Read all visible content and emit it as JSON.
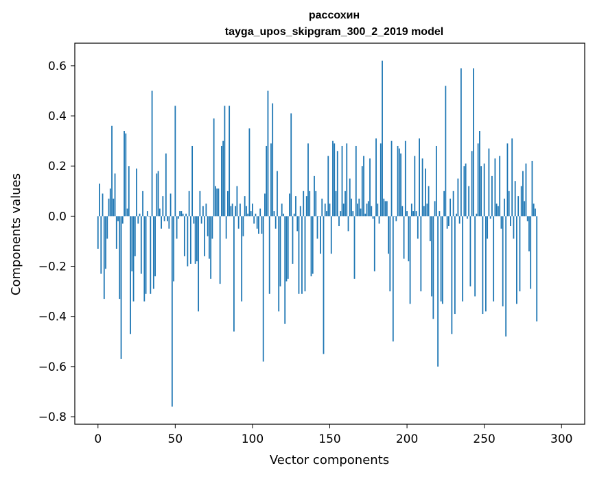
{
  "chart_data": {
    "type": "bar",
    "title": "рассохин",
    "subtitle": "tayga_upos_skipgram_300_2_2019 model",
    "xlabel": "Vector components",
    "ylabel": "Components values",
    "xlim": [
      -15,
      315
    ],
    "ylim": [
      -0.83,
      0.69
    ],
    "xticks": [
      0,
      50,
      100,
      150,
      200,
      250,
      300
    ],
    "xtick_labels": [
      "0",
      "50",
      "100",
      "150",
      "200",
      "250",
      "300"
    ],
    "yticks": [
      -0.8,
      -0.6,
      -0.4,
      -0.2,
      0.0,
      0.2,
      0.4,
      0.6
    ],
    "ytick_labels": [
      "−0.8",
      "−0.6",
      "−0.4",
      "−0.2",
      "0.0",
      "0.2",
      "0.4",
      "0.6"
    ],
    "bar_color": "#1f77b4",
    "series": [
      {
        "name": "components",
        "values": [
          -0.13,
          0.13,
          -0.23,
          0.09,
          -0.33,
          -0.21,
          -0.09,
          0.07,
          0.11,
          0.36,
          0.07,
          0.17,
          -0.13,
          -0.02,
          -0.33,
          -0.57,
          -0.03,
          0.34,
          0.33,
          0.03,
          0.2,
          -0.47,
          -0.22,
          -0.34,
          -0.16,
          0.19,
          -0.03,
          0.01,
          -0.23,
          0.1,
          -0.34,
          -0.31,
          0.02,
          0.0,
          -0.31,
          0.5,
          -0.29,
          -0.24,
          0.17,
          0.18,
          0.03,
          -0.05,
          0.08,
          -0.02,
          0.25,
          -0.02,
          -0.05,
          0.09,
          -0.76,
          -0.26,
          0.44,
          -0.09,
          -0.01,
          0.02,
          0.02,
          0.01,
          -0.16,
          0.01,
          -0.2,
          0.1,
          -0.19,
          0.28,
          -0.03,
          -0.19,
          -0.18,
          -0.38,
          0.1,
          -0.03,
          0.04,
          -0.16,
          0.05,
          -0.08,
          -0.17,
          -0.25,
          -0.09,
          0.39,
          0.12,
          0.11,
          0.11,
          -0.27,
          0.28,
          0.3,
          0.44,
          -0.09,
          0.1,
          0.44,
          0.04,
          0.05,
          -0.46,
          0.04,
          0.12,
          -0.05,
          0.05,
          -0.34,
          -0.08,
          0.08,
          0.04,
          0.01,
          0.35,
          0.02,
          0.05,
          -0.03,
          0.01,
          -0.05,
          -0.07,
          0.03,
          -0.07,
          -0.58,
          0.09,
          0.28,
          0.5,
          -0.31,
          0.29,
          0.45,
          0.02,
          -0.05,
          0.18,
          -0.38,
          -0.28,
          0.05,
          0.01,
          -0.43,
          -0.26,
          -0.25,
          0.09,
          0.41,
          -0.19,
          0.01,
          0.08,
          -0.06,
          -0.31,
          0.04,
          -0.31,
          0.1,
          -0.3,
          0.08,
          0.29,
          0.1,
          -0.24,
          -0.23,
          0.16,
          0.1,
          -0.09,
          0.0,
          -0.15,
          0.07,
          -0.55,
          0.05,
          0.02,
          0.24,
          0.05,
          -0.15,
          0.3,
          0.29,
          0.1,
          0.26,
          -0.04,
          0.02,
          0.28,
          0.05,
          0.1,
          0.29,
          -0.06,
          0.15,
          0.07,
          0.02,
          -0.25,
          0.28,
          0.05,
          0.07,
          0.03,
          0.2,
          0.24,
          0.01,
          0.05,
          0.06,
          0.23,
          0.04,
          -0.01,
          -0.22,
          0.31,
          0.05,
          -0.03,
          0.29,
          0.62,
          0.07,
          0.06,
          0.06,
          -0.15,
          -0.3,
          0.3,
          -0.5,
          -0.0,
          -0.02,
          0.28,
          0.27,
          0.25,
          0.04,
          -0.17,
          0.3,
          0.02,
          -0.18,
          -0.35,
          0.05,
          0.02,
          0.24,
          0.02,
          -0.09,
          0.31,
          -0.3,
          0.23,
          0.04,
          0.19,
          0.05,
          0.12,
          -0.1,
          -0.32,
          -0.41,
          0.06,
          0.28,
          -0.6,
          0.02,
          -0.34,
          -0.35,
          0.1,
          0.52,
          -0.05,
          -0.04,
          0.07,
          -0.47,
          0.1,
          -0.39,
          0.01,
          0.15,
          -0.03,
          0.59,
          -0.34,
          0.2,
          0.21,
          -0.01,
          0.12,
          -0.28,
          0.26,
          0.59,
          -0.32,
          0.01,
          0.29,
          0.34,
          0.2,
          -0.39,
          0.21,
          -0.38,
          -0.09,
          0.27,
          -0.01,
          0.16,
          -0.34,
          0.23,
          0.05,
          0.04,
          0.24,
          -0.05,
          -0.36,
          0.07,
          -0.48,
          0.29,
          0.1,
          -0.04,
          0.31,
          -0.09,
          0.14,
          -0.35,
          0.08,
          -0.3,
          0.12,
          0.18,
          0.06,
          0.21,
          -0.02,
          -0.14,
          -0.29,
          0.22,
          0.05,
          0.03,
          -0.42
        ]
      }
    ]
  }
}
